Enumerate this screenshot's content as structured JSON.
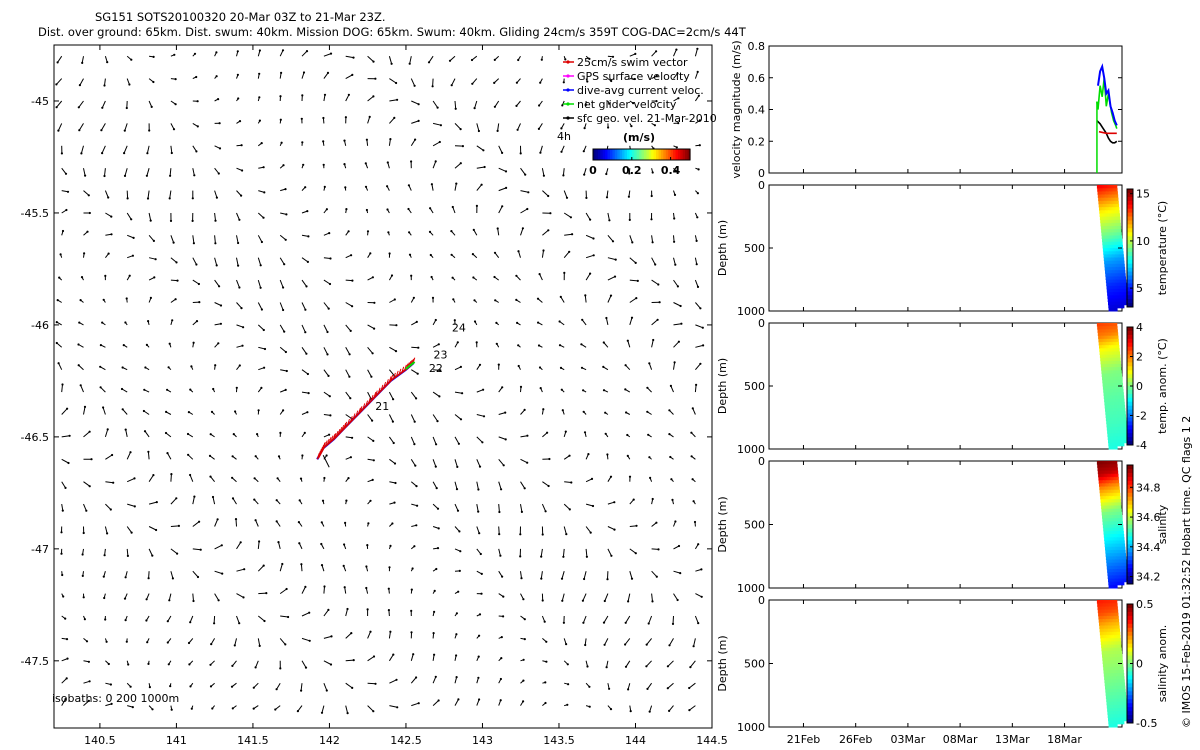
{
  "header": {
    "title": "SG151 SOTS20100320 20-Mar 03Z to 21-Mar 23Z.",
    "subtitle": "Dist. over ground: 65km. Dist. swum: 40km. Mission DOG: 65km. Swum: 40km. Gliding 24cm/s 359T COG-DAC=2cm/s 44T"
  },
  "footer": {
    "credit": "© IMOS 15-Feb-2019 01:32:52 Hobart time. QC flags 1  2"
  },
  "colors": {
    "swim_vector": "#dd0000",
    "gps_surface": "#ff00ff",
    "dive_avg": "#0000ff",
    "net_glider": "#00dd00",
    "sfc_geo": "#000000"
  },
  "chart_data": [
    {
      "type": "scatter",
      "name": "map",
      "xlim": [
        140.2,
        144.5
      ],
      "ylim": [
        -47.8,
        -44.75
      ],
      "x_ticks": [
        140.5,
        141,
        141.5,
        142,
        142.5,
        143,
        143.5,
        144,
        144.5
      ],
      "y_ticks": [
        -45,
        -45.5,
        -46,
        -46.5,
        -47,
        -47.5
      ],
      "legend": {
        "placement": "top-right",
        "entries": [
          {
            "key": "swim",
            "label": "25cm/s swim vector"
          },
          {
            "key": "gps",
            "label": "GPS surface velocity"
          },
          {
            "key": "dac",
            "label": "dive-avg current veloc."
          },
          {
            "key": "net",
            "label": "net glider velocity"
          },
          {
            "key": "sfc",
            "label": "sfc geo. vel. 21-Mar-2010"
          }
        ],
        "window_label": "4h"
      },
      "colorbar": {
        "label": "(m/s)",
        "ticks": [
          0,
          0.2,
          0.4
        ],
        "range": [
          0,
          0.5
        ],
        "colormap": "jet"
      },
      "track": [
        [
          141.92,
          -46.6
        ],
        [
          141.96,
          -46.55
        ],
        [
          142.03,
          -46.51
        ],
        [
          142.1,
          -46.46
        ],
        [
          142.2,
          -46.39
        ],
        [
          142.3,
          -46.32
        ],
        [
          142.4,
          -46.25
        ],
        [
          142.5,
          -46.2
        ],
        [
          142.55,
          -46.17
        ]
      ],
      "day_labels": [
        {
          "text": "21",
          "lon": 142.3,
          "lat": -46.38
        },
        {
          "text": "22",
          "lon": 142.65,
          "lat": -46.21
        },
        {
          "text": "23",
          "lon": 142.68,
          "lat": -46.15
        },
        {
          "text": "24",
          "lon": 142.8,
          "lat": -46.03
        }
      ],
      "isobaths_label": "isobaths: 0   200  1000m"
    },
    {
      "type": "line",
      "name": "velocity",
      "ylabel": "velocity magnitude (m/s)",
      "ylim": [
        0,
        0.8
      ],
      "y_ticks": [
        0,
        0.2,
        0.4,
        0.6,
        0.8
      ],
      "series": [
        {
          "key": "net",
          "x": [
            20.1,
            20.2,
            20.4,
            20.6,
            20.8,
            21.0,
            21.2,
            21.5,
            21.7,
            21.9,
            22.0
          ],
          "values": [
            0.45,
            0.4,
            0.55,
            0.48,
            0.6,
            0.42,
            0.5,
            0.38,
            0.33,
            0.3,
            0.28
          ]
        },
        {
          "key": "dac",
          "x": [
            20.2,
            20.4,
            20.6,
            20.8,
            21.0,
            21.2,
            21.4,
            21.6,
            21.8,
            22.0
          ],
          "values": [
            0.55,
            0.64,
            0.67,
            0.6,
            0.5,
            0.52,
            0.42,
            0.38,
            0.33,
            0.3
          ]
        },
        {
          "key": "sfc",
          "x": [
            20.1,
            20.4,
            20.7,
            21.0,
            21.2,
            21.4,
            21.6,
            21.8,
            22.0
          ],
          "values": [
            0.33,
            0.31,
            0.28,
            0.25,
            0.22,
            0.2,
            0.19,
            0.19,
            0.2
          ]
        },
        {
          "key": "swim",
          "x": [
            20.3,
            21.0,
            22.0
          ],
          "values": [
            0.26,
            0.25,
            0.25
          ]
        }
      ]
    },
    {
      "type": "heatmap",
      "name": "temperature",
      "ylabel": "Depth (m)",
      "ylim": [
        1000,
        0
      ],
      "y_ticks": [
        0,
        500,
        1000
      ],
      "cbar_label": "temperature (°C)",
      "cbar_ticks": [
        5,
        10,
        15
      ],
      "cbar_range": [
        3,
        15.5
      ],
      "profile": {
        "depth": [
          0,
          100,
          200,
          400,
          600,
          800,
          1000
        ],
        "values": [
          14,
          12.5,
          11,
          9,
          6.5,
          5,
          4
        ]
      }
    },
    {
      "type": "heatmap",
      "name": "temp_anom",
      "ylabel": "Depth (m)",
      "ylim": [
        1000,
        0
      ],
      "y_ticks": [
        0,
        500,
        1000
      ],
      "cbar_label": "temp. anom. (°C)",
      "cbar_ticks": [
        -4,
        -2,
        0,
        2,
        4
      ],
      "cbar_range": [
        -4,
        4
      ],
      "profile": {
        "depth": [
          0,
          100,
          200,
          400,
          600,
          800,
          1000
        ],
        "values": [
          2.5,
          2,
          1,
          0,
          -0.3,
          -0.5,
          -0.8
        ]
      }
    },
    {
      "type": "heatmap",
      "name": "salinity",
      "ylabel": "Depth (m)",
      "ylim": [
        1000,
        0
      ],
      "y_ticks": [
        0,
        500,
        1000
      ],
      "cbar_label": "salinity",
      "cbar_ticks": [
        34.2,
        34.4,
        34.6,
        34.8
      ],
      "cbar_range": [
        34.15,
        34.95
      ],
      "profile": {
        "depth": [
          0,
          100,
          200,
          400,
          600,
          800,
          1000
        ],
        "values": [
          34.95,
          34.9,
          34.75,
          34.55,
          34.45,
          34.35,
          34.25
        ]
      }
    },
    {
      "type": "heatmap",
      "name": "sal_anom",
      "ylabel": "Depth (m)",
      "ylim": [
        1000,
        0
      ],
      "y_ticks": [
        0,
        500,
        1000
      ],
      "cbar_label": "salinity anom.",
      "cbar_ticks": [
        -0.5,
        0,
        0.5
      ],
      "cbar_range": [
        -0.5,
        0.5
      ],
      "x_tick_labels": [
        "21Feb",
        "26Feb",
        "03Mar",
        "08Mar",
        "13Mar",
        "18Mar"
      ],
      "profile": {
        "depth": [
          0,
          100,
          200,
          400,
          600,
          800,
          1000
        ],
        "values": [
          0.35,
          0.3,
          0.2,
          0.05,
          0,
          -0.05,
          -0.1
        ]
      }
    }
  ]
}
